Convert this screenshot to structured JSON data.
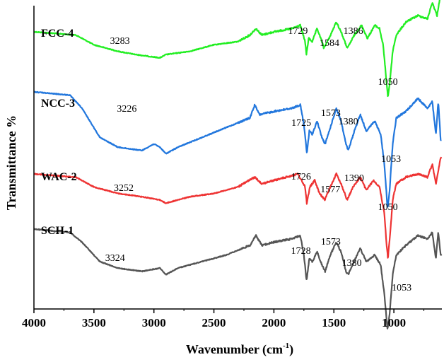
{
  "chart_data": {
    "type": "line",
    "xlabel": "Wavenumber (cm",
    "xlabel_sup": "-1",
    "xlabel_close": ")",
    "ylabel": "Transmittance %",
    "xlim": [
      4000,
      600
    ],
    "x_reversed": true,
    "x_ticks": [
      4000,
      3500,
      3000,
      2500,
      2000,
      1500,
      1000
    ],
    "y_ticks_shown": false,
    "grid": false,
    "legend": "none",
    "series": [
      {
        "name": "FCC-4",
        "color": "#22ee22",
        "baseline": 90,
        "points": [
          [
            4000,
            0
          ],
          [
            3650,
            -1
          ],
          [
            3500,
            -4
          ],
          [
            3300,
            -6
          ],
          [
            3150,
            -7
          ],
          [
            2950,
            -8
          ],
          [
            2900,
            -7
          ],
          [
            2700,
            -6
          ],
          [
            2500,
            -4
          ],
          [
            2300,
            -3
          ],
          [
            2200,
            -1
          ],
          [
            2150,
            1
          ],
          [
            2100,
            -1
          ],
          [
            2000,
            0
          ],
          [
            1850,
            1
          ],
          [
            1780,
            2
          ],
          [
            1740,
            -3
          ],
          [
            1729,
            -7
          ],
          [
            1710,
            -2
          ],
          [
            1680,
            -3
          ],
          [
            1640,
            1
          ],
          [
            1600,
            -3
          ],
          [
            1584,
            -5
          ],
          [
            1540,
            -2
          ],
          [
            1480,
            3
          ],
          [
            1440,
            0
          ],
          [
            1400,
            -4
          ],
          [
            1386,
            -5
          ],
          [
            1330,
            -1
          ],
          [
            1270,
            2
          ],
          [
            1220,
            -2
          ],
          [
            1160,
            2
          ],
          [
            1120,
            1
          ],
          [
            1090,
            -4
          ],
          [
            1070,
            -12
          ],
          [
            1050,
            -20
          ],
          [
            1035,
            -16
          ],
          [
            1010,
            -6
          ],
          [
            980,
            -1
          ],
          [
            900,
            3
          ],
          [
            800,
            5
          ],
          [
            720,
            4
          ],
          [
            680,
            9
          ],
          [
            640,
            5
          ],
          [
            610,
            12
          ]
        ],
        "peaks": [
          3283,
          1729,
          1584,
          1386,
          1050
        ]
      },
      {
        "name": "NCC-3",
        "color": "#2277dd",
        "baseline": 70,
        "points": [
          [
            4000,
            0
          ],
          [
            3700,
            -1
          ],
          [
            3600,
            -5
          ],
          [
            3450,
            -14
          ],
          [
            3300,
            -17
          ],
          [
            3100,
            -18
          ],
          [
            3000,
            -16
          ],
          [
            2950,
            -17
          ],
          [
            2900,
            -19
          ],
          [
            2800,
            -17
          ],
          [
            2600,
            -14
          ],
          [
            2400,
            -11
          ],
          [
            2200,
            -8
          ],
          [
            2160,
            -4
          ],
          [
            2120,
            -7
          ],
          [
            2000,
            -6
          ],
          [
            1850,
            -5
          ],
          [
            1780,
            -4
          ],
          [
            1750,
            -10
          ],
          [
            1725,
            -19
          ],
          [
            1705,
            -12
          ],
          [
            1680,
            -13
          ],
          [
            1640,
            -9
          ],
          [
            1600,
            -14
          ],
          [
            1573,
            -16
          ],
          [
            1530,
            -11
          ],
          [
            1480,
            -5
          ],
          [
            1440,
            -9
          ],
          [
            1400,
            -16
          ],
          [
            1380,
            -18
          ],
          [
            1320,
            -11
          ],
          [
            1280,
            -7
          ],
          [
            1230,
            -12
          ],
          [
            1160,
            -9
          ],
          [
            1110,
            -13
          ],
          [
            1080,
            -22
          ],
          [
            1060,
            -32
          ],
          [
            1053,
            -36
          ],
          [
            1035,
            -30
          ],
          [
            1010,
            -16
          ],
          [
            980,
            -8
          ],
          [
            900,
            -6
          ],
          [
            800,
            -2
          ],
          [
            720,
            -5
          ],
          [
            680,
            -3
          ],
          [
            650,
            -13
          ],
          [
            630,
            -3
          ],
          [
            610,
            -15
          ]
        ],
        "peaks": [
          3226,
          1725,
          1573,
          1380,
          1053
        ]
      },
      {
        "name": "WAC-2",
        "color": "#ee3333",
        "baseline": 50,
        "points": [
          [
            4000,
            0
          ],
          [
            3650,
            -1
          ],
          [
            3500,
            -4
          ],
          [
            3300,
            -6
          ],
          [
            3100,
            -7
          ],
          [
            2950,
            -8
          ],
          [
            2900,
            -9
          ],
          [
            2700,
            -7
          ],
          [
            2500,
            -6
          ],
          [
            2300,
            -4
          ],
          [
            2160,
            -1
          ],
          [
            2100,
            -3
          ],
          [
            1900,
            -1
          ],
          [
            1800,
            0
          ],
          [
            1740,
            -4
          ],
          [
            1726,
            -9
          ],
          [
            1700,
            -4
          ],
          [
            1660,
            -2
          ],
          [
            1620,
            -6
          ],
          [
            1577,
            -8
          ],
          [
            1530,
            -4
          ],
          [
            1480,
            0
          ],
          [
            1440,
            -3
          ],
          [
            1400,
            -7
          ],
          [
            1390,
            -8
          ],
          [
            1340,
            -4
          ],
          [
            1280,
            -1
          ],
          [
            1230,
            -5
          ],
          [
            1170,
            -2
          ],
          [
            1120,
            -4
          ],
          [
            1080,
            -12
          ],
          [
            1060,
            -22
          ],
          [
            1050,
            -26
          ],
          [
            1030,
            -18
          ],
          [
            1010,
            -8
          ],
          [
            980,
            -3
          ],
          [
            900,
            -1
          ],
          [
            800,
            0
          ],
          [
            720,
            -1
          ],
          [
            680,
            3
          ],
          [
            650,
            -3
          ],
          [
            610,
            5
          ]
        ],
        "peaks": [
          3252,
          1726,
          1577,
          1390,
          1050
        ]
      },
      {
        "name": "SCH-1",
        "color": "#555555",
        "baseline": 30,
        "points": [
          [
            4000,
            0
          ],
          [
            3700,
            -1
          ],
          [
            3600,
            -4
          ],
          [
            3450,
            -10
          ],
          [
            3300,
            -12
          ],
          [
            3100,
            -13
          ],
          [
            2950,
            -12
          ],
          [
            2900,
            -14
          ],
          [
            2800,
            -12
          ],
          [
            2600,
            -10
          ],
          [
            2400,
            -8
          ],
          [
            2200,
            -5
          ],
          [
            2150,
            -2
          ],
          [
            2100,
            -5
          ],
          [
            2000,
            -4
          ],
          [
            1850,
            -3
          ],
          [
            1780,
            -2
          ],
          [
            1750,
            -8
          ],
          [
            1728,
            -16
          ],
          [
            1705,
            -9
          ],
          [
            1680,
            -10
          ],
          [
            1640,
            -7
          ],
          [
            1600,
            -11
          ],
          [
            1573,
            -13
          ],
          [
            1530,
            -8
          ],
          [
            1480,
            -4
          ],
          [
            1440,
            -7
          ],
          [
            1400,
            -13
          ],
          [
            1380,
            -14
          ],
          [
            1320,
            -9
          ],
          [
            1280,
            -6
          ],
          [
            1230,
            -10
          ],
          [
            1160,
            -8
          ],
          [
            1110,
            -11
          ],
          [
            1080,
            -20
          ],
          [
            1060,
            -28
          ],
          [
            1053,
            -31
          ],
          [
            1035,
            -26
          ],
          [
            1010,
            -14
          ],
          [
            980,
            -8
          ],
          [
            900,
            -5
          ],
          [
            800,
            -2
          ],
          [
            720,
            -3
          ],
          [
            680,
            -1
          ],
          [
            650,
            -9
          ],
          [
            630,
            -1
          ],
          [
            610,
            -8
          ]
        ],
        "peaks": [
          3324,
          1728,
          1573,
          1380,
          1053
        ]
      }
    ]
  }
}
